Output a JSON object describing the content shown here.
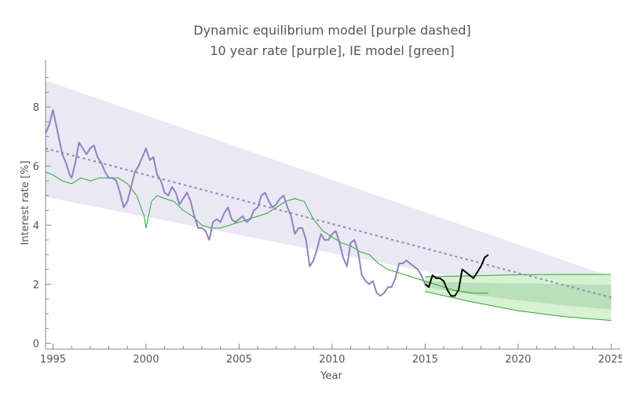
{
  "chart_data": {
    "type": "line",
    "title": "Dynamic equilibrium model [purple dashed]",
    "subtitle": "10 year rate [purple], IE model [green]",
    "xlabel": "Year",
    "ylabel": "Interest rate [%]",
    "xlim": [
      1994.6,
      2025.5
    ],
    "ylim": [
      -0.2,
      9.6
    ],
    "x_ticks": [
      1995,
      2000,
      2005,
      2010,
      2015,
      2020,
      2025
    ],
    "y_ticks": [
      0,
      2,
      4,
      6,
      8
    ],
    "grid": false,
    "legend": "none",
    "colors": {
      "purple": "#8c84bd",
      "purple_band": "#e9e8f4",
      "green": "#2da52d",
      "green_band_outer": "#d6f2d2",
      "green_band_inner": "#b6dcb4",
      "black": "#000000"
    },
    "series": [
      {
        "role": "ten_year_rate",
        "x": [
          1994.6,
          1994.8,
          1995.0,
          1995.1,
          1995.3,
          1995.5,
          1995.7,
          1995.9,
          1996.0,
          1996.2,
          1996.4,
          1996.6,
          1996.8,
          1997.0,
          1997.2,
          1997.4,
          1997.6,
          1997.8,
          1998.0,
          1998.2,
          1998.4,
          1998.6,
          1998.8,
          1999.0,
          1999.2,
          1999.4,
          1999.6,
          1999.8,
          2000.0,
          2000.2,
          2000.4,
          2000.6,
          2000.8,
          2001.0,
          2001.2,
          2001.4,
          2001.6,
          2001.8,
          2002.0,
          2002.2,
          2002.4,
          2002.6,
          2002.8,
          2003.0,
          2003.2,
          2003.4,
          2003.6,
          2003.8,
          2004.0,
          2004.2,
          2004.4,
          2004.6,
          2004.8,
          2005.0,
          2005.2,
          2005.4,
          2005.6,
          2005.8,
          2006.0,
          2006.2,
          2006.4,
          2006.6,
          2006.8,
          2007.0,
          2007.2,
          2007.4,
          2007.6,
          2007.8,
          2008.0,
          2008.2,
          2008.4,
          2008.6,
          2008.8,
          2009.0,
          2009.2,
          2009.4,
          2009.6,
          2009.8,
          2010.0,
          2010.2,
          2010.4,
          2010.6,
          2010.8,
          2011.0,
          2011.2,
          2011.4,
          2011.6,
          2011.8,
          2012.0,
          2012.2,
          2012.4,
          2012.6,
          2012.8,
          2013.0,
          2013.2,
          2013.4,
          2013.6,
          2013.8,
          2014.0,
          2014.2,
          2014.4,
          2014.6,
          2014.8,
          2015.0
        ],
        "y": [
          7.1,
          7.4,
          7.9,
          7.6,
          7.0,
          6.4,
          6.1,
          5.7,
          5.6,
          6.1,
          6.8,
          6.6,
          6.4,
          6.6,
          6.7,
          6.3,
          6.1,
          5.8,
          5.6,
          5.6,
          5.5,
          5.1,
          4.6,
          4.8,
          5.3,
          5.8,
          6.0,
          6.3,
          6.6,
          6.2,
          6.3,
          5.7,
          5.5,
          5.1,
          5.0,
          5.3,
          5.1,
          4.7,
          4.9,
          5.1,
          4.8,
          4.3,
          3.9,
          3.9,
          3.8,
          3.5,
          4.1,
          4.2,
          4.1,
          4.4,
          4.6,
          4.2,
          4.1,
          4.2,
          4.3,
          4.1,
          4.2,
          4.5,
          4.6,
          5.0,
          5.1,
          4.8,
          4.6,
          4.7,
          4.9,
          5.0,
          4.6,
          4.3,
          3.7,
          3.9,
          3.9,
          3.5,
          2.6,
          2.8,
          3.2,
          3.7,
          3.5,
          3.5,
          3.7,
          3.8,
          3.4,
          2.9,
          2.6,
          3.4,
          3.5,
          3.1,
          2.3,
          2.1,
          2.0,
          2.1,
          1.7,
          1.6,
          1.7,
          1.9,
          1.9,
          2.2,
          2.7,
          2.7,
          2.8,
          2.7,
          2.6,
          2.5,
          2.3,
          2.0
        ]
      },
      {
        "role": "ten_year_rate_recent",
        "x": [
          2015.0,
          2015.2,
          2015.4,
          2015.6,
          2015.8,
          2016.0,
          2016.2,
          2016.4,
          2016.6,
          2016.8,
          2017.0,
          2017.2,
          2017.4,
          2017.6,
          2017.8,
          2018.0,
          2018.2,
          2018.4
        ],
        "y": [
          2.0,
          1.9,
          2.3,
          2.2,
          2.2,
          2.1,
          1.8,
          1.6,
          1.6,
          1.8,
          2.5,
          2.4,
          2.3,
          2.2,
          2.4,
          2.6,
          2.9,
          3.0
        ]
      },
      {
        "role": "ie_model",
        "x": [
          1994.6,
          1995.0,
          1995.5,
          1996.0,
          1996.5,
          1997.0,
          1997.5,
          1998.0,
          1998.5,
          1999.0,
          1999.5,
          1999.9,
          2000.0,
          2000.3,
          2000.6,
          2001.0,
          2001.5,
          2002.0,
          2002.5,
          2003.0,
          2003.5,
          2004.0,
          2004.5,
          2005.0,
          2005.5,
          2006.0,
          2006.5,
          2007.0,
          2007.5,
          2008.0,
          2008.5,
          2009.0,
          2009.5,
          2010.0,
          2010.5,
          2011.0,
          2011.5,
          2012.0,
          2012.5,
          2013.0,
          2013.5,
          2014.0,
          2014.5,
          2015.0,
          2015.5,
          2016.0,
          2016.5,
          2017.0,
          2017.5,
          2018.0,
          2018.4
        ],
        "y": [
          5.8,
          5.7,
          5.5,
          5.4,
          5.6,
          5.5,
          5.6,
          5.6,
          5.6,
          5.4,
          5.0,
          4.3,
          3.9,
          4.8,
          5.0,
          4.9,
          4.8,
          4.5,
          4.3,
          4.0,
          3.9,
          3.9,
          4.0,
          4.1,
          4.2,
          4.3,
          4.4,
          4.6,
          4.8,
          4.9,
          4.8,
          4.2,
          3.8,
          3.6,
          3.4,
          3.3,
          3.1,
          3.0,
          2.7,
          2.5,
          2.4,
          2.3,
          2.2,
          2.1,
          2.0,
          1.9,
          1.8,
          1.75,
          1.7,
          1.7,
          1.7
        ]
      },
      {
        "role": "dynamic_equilibrium_model",
        "x": [
          1994.6,
          2025.0
        ],
        "y": [
          6.6,
          1.55
        ]
      }
    ],
    "bands": [
      {
        "role": "dynamic_equilibrium_band",
        "x": [
          1994.6,
          2025.0
        ],
        "upper": [
          8.9,
          2.25
        ],
        "lower": [
          4.95,
          1.2
        ]
      },
      {
        "role": "ie_model_band_outer",
        "x": [
          2015.0,
          2017.5,
          2020.0,
          2022.5,
          2025.0
        ],
        "upper": [
          2.25,
          2.28,
          2.32,
          2.33,
          2.33
        ],
        "lower": [
          1.75,
          1.4,
          1.1,
          0.9,
          0.77
        ]
      },
      {
        "role": "ie_model_band_inner",
        "x": [
          2015.0,
          2017.5,
          2020.0,
          2022.5,
          2025.0
        ],
        "upper": [
          2.1,
          2.05,
          2.03,
          2.0,
          1.98
        ],
        "lower": [
          1.9,
          1.65,
          1.45,
          1.28,
          1.14
        ]
      }
    ]
  }
}
